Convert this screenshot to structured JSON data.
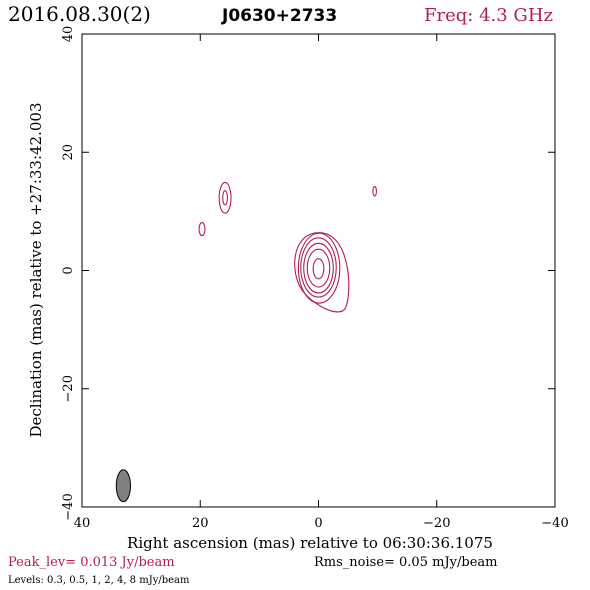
{
  "header": {
    "date": "2016.08.30(2)",
    "source": "J0630+2733",
    "freq": "Freq: 4.3 GHz"
  },
  "footer": {
    "peak": "Peak_lev=  0.013 Jy/beam",
    "rms": "Rms_noise= 0.05 mJy/beam",
    "levels": "Levels: 0.3, 0.5,    1,    2,    4,    8 mJy/beam"
  },
  "colors": {
    "contour": "#b0204a",
    "header_freq": "#b0204a",
    "peak_text": "#b0204a",
    "beam_fill": "#808080"
  },
  "chart_data": {
    "type": "contour",
    "xlabel": "Right ascension (mas) relative to 06:30:36.1075",
    "ylabel": "Declination (mas) relative to +27:33:42.003",
    "xlim": [
      40,
      -40
    ],
    "ylim": [
      -40,
      40
    ],
    "xticks": [
      40,
      20,
      0,
      -20,
      -40
    ],
    "yticks": [
      -40,
      -20,
      0,
      20,
      40
    ],
    "xticklabels": [
      "40",
      "20",
      "0",
      "−20",
      "−40"
    ],
    "yticklabels": [
      "−40",
      "−20",
      "0",
      "20",
      "40"
    ],
    "grid": false,
    "levels_mJy": [
      0.3,
      0.5,
      1,
      2,
      4,
      8
    ],
    "components": [
      {
        "x": 0.0,
        "y": 0.0,
        "contours": [
          {
            "rx": 0.9,
            "ry": 1.7,
            "cx": 0.0,
            "cy": 0.3
          },
          {
            "rx": 1.9,
            "ry": 3.2,
            "cx": 0.0,
            "cy": 0.4
          },
          {
            "rx": 2.5,
            "ry": 4.2,
            "cx": 0.0,
            "cy": 0.4
          },
          {
            "rx": 3.0,
            "ry": 5.0,
            "cx": 0.0,
            "cy": 0.5
          },
          {
            "rx": 3.5,
            "ry": 5.9,
            "cx": -0.1,
            "cy": 0.4
          },
          {
            "rx": 3.9,
            "ry": 6.2,
            "cx": -0.1,
            "cy": 0.2,
            "tail": true
          }
        ]
      },
      {
        "x": 15.8,
        "y": 12.3,
        "contours": [
          {
            "rx": 0.4,
            "ry": 1.2,
            "cx": 15.8,
            "cy": 12.3
          },
          {
            "rx": 1.0,
            "ry": 2.6,
            "cx": 15.8,
            "cy": 12.3
          }
        ]
      },
      {
        "x": 19.7,
        "y": 7.0,
        "contours": [
          {
            "rx": 0.5,
            "ry": 1.1,
            "cx": 19.7,
            "cy": 7.0
          }
        ]
      },
      {
        "x": -9.5,
        "y": 13.4,
        "contours": [
          {
            "rx": 0.3,
            "ry": 0.8,
            "cx": -9.5,
            "cy": 13.4
          }
        ]
      }
    ],
    "beam": {
      "x": 33.0,
      "y": -36.4,
      "major_mas": 5.4,
      "minor_mas": 2.4,
      "pa_deg": 0
    }
  }
}
